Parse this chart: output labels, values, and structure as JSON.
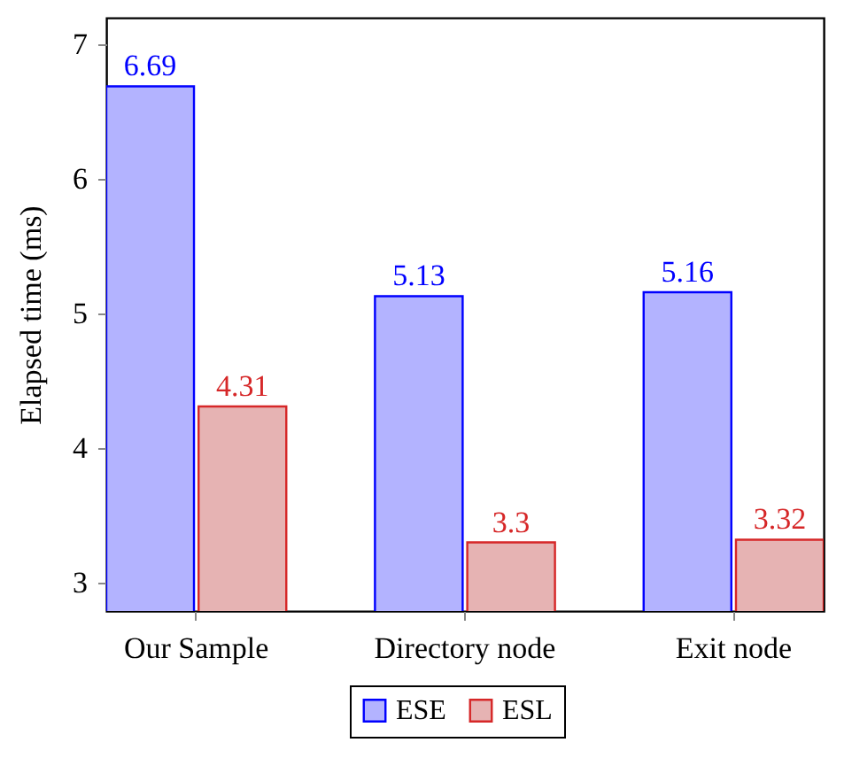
{
  "chart_data": {
    "type": "bar",
    "ylabel": "Elapsed time (ms)",
    "categories": [
      "Our Sample",
      "Directory node",
      "Exit node"
    ],
    "series": [
      {
        "name": "ESE",
        "color": "#b3b3ff",
        "values": [
          6.69,
          5.13,
          5.16
        ]
      },
      {
        "name": "ESL",
        "color": "#e6b3b3",
        "values": [
          4.31,
          3.3,
          3.32
        ]
      }
    ],
    "ylim": [
      2.79,
      7.2
    ],
    "yticks": [
      3,
      4,
      5,
      6,
      7
    ],
    "data_labels": true,
    "legend": "bottom",
    "grid": false
  }
}
